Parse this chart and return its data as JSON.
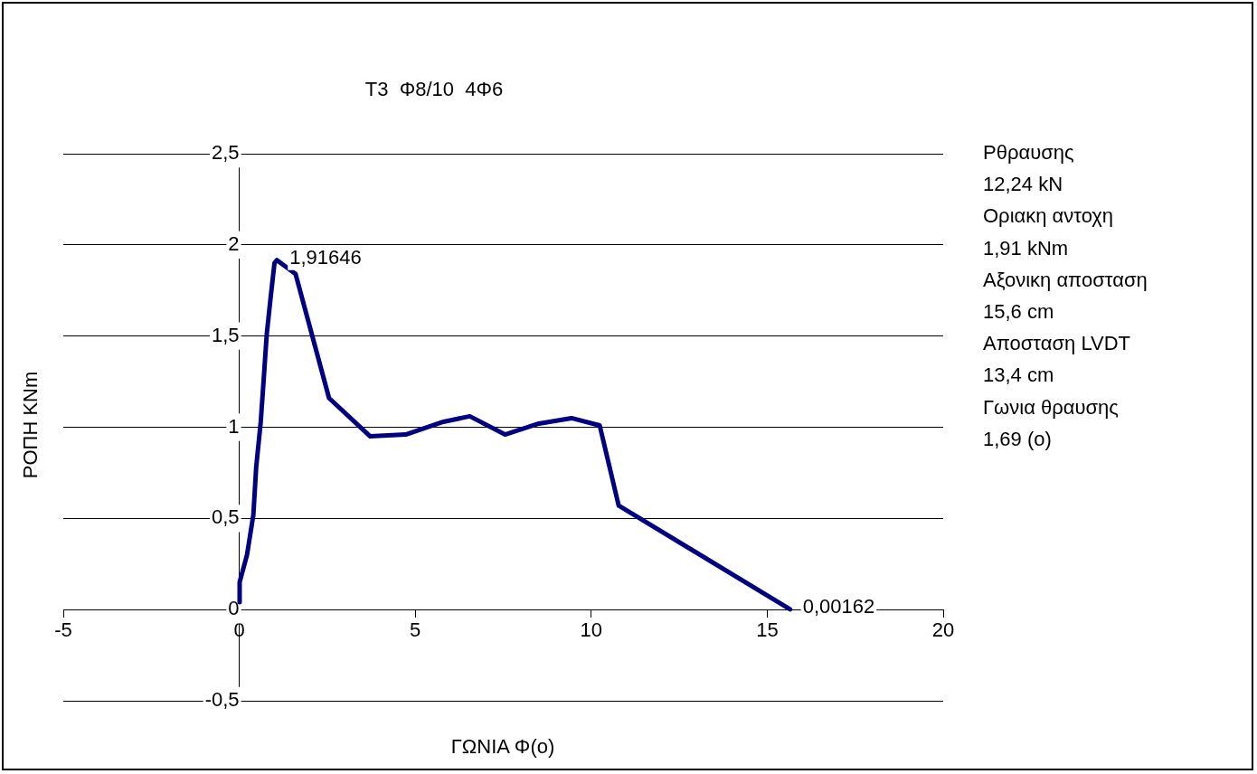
{
  "chart_data": {
    "type": "line",
    "title": "T3  Φ8/10  4Φ6",
    "xlabel": "ΓΩΝΙΑ Φ(ο)",
    "ylabel": "ΡΟΠΗ KNm",
    "x": [
      0.01,
      0.01,
      0.22,
      0.4,
      0.48,
      0.61,
      0.7,
      0.78,
      0.89,
      1.0,
      1.07,
      1.6,
      2.55,
      3.72,
      4.73,
      5.8,
      6.55,
      7.55,
      8.51,
      9.44,
      10.24,
      10.78,
      15.65
    ],
    "series": [
      {
        "color": "#000080",
        "values": [
          0.04,
          0.15,
          0.3,
          0.52,
          0.78,
          1.03,
          1.28,
          1.51,
          1.71,
          1.9,
          1.91646,
          1.84,
          1.16,
          0.95,
          0.96,
          1.03,
          1.06,
          0.96,
          1.02,
          1.05,
          1.01,
          0.57,
          0.00162
        ]
      }
    ],
    "xlim": [
      -5,
      20
    ],
    "xticks": [
      -5,
      0,
      5,
      10,
      15,
      20
    ],
    "ylim": [
      -0.5,
      2.5
    ],
    "yticks": [
      {
        "value": -0.5,
        "label": "-0,5"
      },
      0,
      {
        "value": 0.5,
        "label": "0,5"
      },
      1,
      {
        "value": 1.5,
        "label": "1,5"
      },
      2,
      {
        "value": 2.5,
        "label": "2,5"
      }
    ],
    "grid": "y",
    "legend": false,
    "marker": "none",
    "line_style": "solid",
    "annotations": [
      {
        "text": "1,91646",
        "x": 1.07,
        "y": 1.91646
      },
      {
        "text": "0,00162",
        "x": 15.65,
        "y": 0.00162
      },
      "Ρθραυσης",
      "12,24 kN",
      "Οριακη αντοχη",
      "1,91 kNm",
      "Αξονικη αποσταση",
      "15,6 cm",
      "Αποσταση LVDT",
      "13,4 cm",
      "Γωνια θραυσης",
      "1,69 (ο)"
    ]
  }
}
